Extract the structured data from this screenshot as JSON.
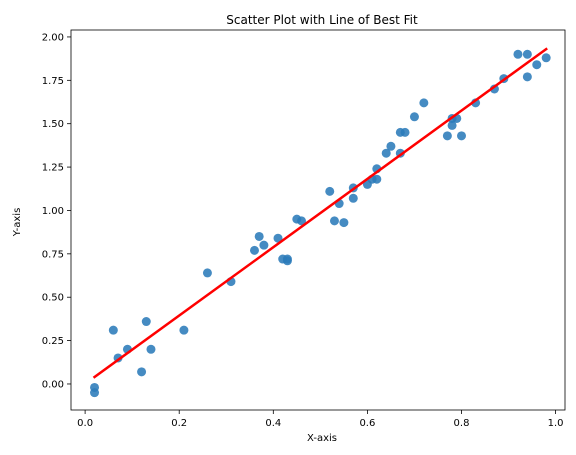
{
  "chart_data": {
    "type": "scatter",
    "title": "Scatter Plot with Line of Best Fit",
    "xlabel": "X-axis",
    "ylabel": "Y-axis",
    "xlim": [
      -0.03,
      1.02
    ],
    "ylim": [
      -0.15,
      2.04
    ],
    "x_ticks": [
      0.0,
      0.2,
      0.4,
      0.6,
      0.8,
      1.0
    ],
    "x_tick_labels": [
      "0.0",
      "0.2",
      "0.4",
      "0.6",
      "0.8",
      "1.0"
    ],
    "y_ticks": [
      0.0,
      0.25,
      0.5,
      0.75,
      1.0,
      1.25,
      1.5,
      1.75,
      2.0
    ],
    "y_tick_labels": [
      "0.00",
      "0.25",
      "0.50",
      "0.75",
      "1.00",
      "1.25",
      "1.50",
      "1.75",
      "2.00"
    ],
    "grid": false,
    "series": [
      {
        "kind": "points",
        "color": "#2b7bba",
        "points": [
          [
            0.02,
            -0.02
          ],
          [
            0.02,
            -0.05
          ],
          [
            0.06,
            0.31
          ],
          [
            0.07,
            0.15
          ],
          [
            0.09,
            0.2
          ],
          [
            0.12,
            0.07
          ],
          [
            0.13,
            0.36
          ],
          [
            0.14,
            0.2
          ],
          [
            0.21,
            0.31
          ],
          [
            0.26,
            0.64
          ],
          [
            0.31,
            0.59
          ],
          [
            0.36,
            0.77
          ],
          [
            0.37,
            0.85
          ],
          [
            0.38,
            0.8
          ],
          [
            0.41,
            0.84
          ],
          [
            0.42,
            0.72
          ],
          [
            0.43,
            0.71
          ],
          [
            0.43,
            0.72
          ],
          [
            0.45,
            0.95
          ],
          [
            0.46,
            0.94
          ],
          [
            0.52,
            1.11
          ],
          [
            0.53,
            0.94
          ],
          [
            0.54,
            1.04
          ],
          [
            0.55,
            0.93
          ],
          [
            0.57,
            1.13
          ],
          [
            0.57,
            1.07
          ],
          [
            0.6,
            1.15
          ],
          [
            0.61,
            1.18
          ],
          [
            0.62,
            1.24
          ],
          [
            0.62,
            1.18
          ],
          [
            0.64,
            1.33
          ],
          [
            0.65,
            1.37
          ],
          [
            0.67,
            1.45
          ],
          [
            0.67,
            1.33
          ],
          [
            0.68,
            1.45
          ],
          [
            0.7,
            1.54
          ],
          [
            0.72,
            1.62
          ],
          [
            0.77,
            1.43
          ],
          [
            0.78,
            1.49
          ],
          [
            0.78,
            1.53
          ],
          [
            0.79,
            1.53
          ],
          [
            0.8,
            1.43
          ],
          [
            0.83,
            1.62
          ],
          [
            0.87,
            1.7
          ],
          [
            0.89,
            1.76
          ],
          [
            0.92,
            1.9
          ],
          [
            0.94,
            1.77
          ],
          [
            0.94,
            1.9
          ],
          [
            0.96,
            1.84
          ],
          [
            0.98,
            1.88
          ]
        ]
      },
      {
        "kind": "fit-line",
        "color": "#ff0000",
        "x": [
          0.02,
          0.98
        ],
        "y": [
          0.04,
          1.93
        ]
      }
    ]
  }
}
